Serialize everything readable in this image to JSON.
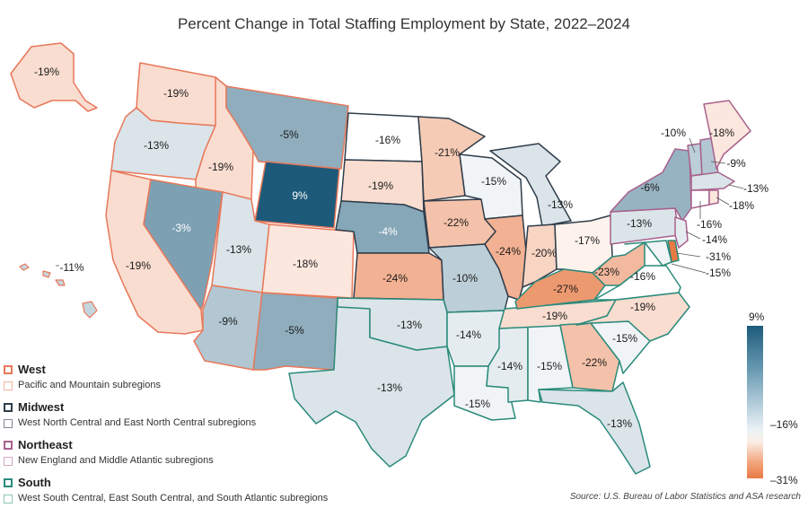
{
  "title": "Percent Change in Total Staffing Employment by State, 2022–2024",
  "colors": {
    "west": "#e8785a",
    "midwest": "#2f3d4a",
    "northeast": "#a8618c",
    "south": "#2a8a7a",
    "scale_high": "#1d5a7a",
    "scale_mid": "#ffffff",
    "scale_low": "#e87a45"
  },
  "states": {
    "AK": {
      "label": "-19%",
      "value": -19
    },
    "HI": {
      "label": "-11%",
      "value": -11
    },
    "WA": {
      "label": "-19%",
      "value": -19
    },
    "OR": {
      "label": "-13%",
      "value": -13
    },
    "CA": {
      "label": "-19%",
      "value": -19
    },
    "ID": {
      "label": "-19%",
      "value": -19
    },
    "NV": {
      "label": "-3%",
      "value": -3
    },
    "MT": {
      "label": "-5%",
      "value": -5
    },
    "WY": {
      "label": "9%",
      "value": 9
    },
    "UT": {
      "label": "-13%",
      "value": -13
    },
    "AZ": {
      "label": "-9%",
      "value": -9
    },
    "CO": {
      "label": "-18%",
      "value": -18
    },
    "NM": {
      "label": "-5%",
      "value": -5
    },
    "ND": {
      "label": "-16%",
      "value": -16
    },
    "SD": {
      "label": "-19%",
      "value": -19
    },
    "NE": {
      "label": "-4%",
      "value": -4
    },
    "KS": {
      "label": "-24%",
      "value": -24
    },
    "MN": {
      "label": "-21%",
      "value": -21
    },
    "IA": {
      "label": "-22%",
      "value": -22
    },
    "MO": {
      "label": "-10%",
      "value": -10
    },
    "WI": {
      "label": "-15%",
      "value": -15
    },
    "IL": {
      "label": "-24%",
      "value": -24
    },
    "MI": {
      "label": "-13%",
      "value": -13
    },
    "IN": {
      "label": "-20%",
      "value": -20
    },
    "OH": {
      "label": "-17%",
      "value": -17
    },
    "TX": {
      "label": "-13%",
      "value": -13
    },
    "OK": {
      "label": "-13%",
      "value": -13
    },
    "AR": {
      "label": "-14%",
      "value": -14
    },
    "LA": {
      "label": "-15%",
      "value": -15
    },
    "MS": {
      "label": "-14%",
      "value": -14
    },
    "AL": {
      "label": "-15%",
      "value": -15
    },
    "TN": {
      "label": "-19%",
      "value": -19
    },
    "KY": {
      "label": "-27%",
      "value": -27
    },
    "GA": {
      "label": "-22%",
      "value": -22
    },
    "FL": {
      "label": "-13%",
      "value": -13
    },
    "SC": {
      "label": "-15%",
      "value": -15
    },
    "NC": {
      "label": "-19%",
      "value": -19
    },
    "VA": {
      "label": "-16%",
      "value": -16
    },
    "WV": {
      "label": "-23%",
      "value": -23
    },
    "PA": {
      "label": "-13%",
      "value": -13
    },
    "NY": {
      "label": "-6%",
      "value": -6
    },
    "VT": {
      "label": "-10%",
      "value": -10
    },
    "ME": {
      "label": "-18%",
      "value": -18
    },
    "NH": {
      "label": "-9%",
      "value": -9
    },
    "MA": {
      "label": "-13%",
      "value": -13
    },
    "RI": {
      "label": "-18%",
      "value": -18
    },
    "CT": {
      "label": "-16%",
      "value": -16
    },
    "NJ": {
      "label": "-14%",
      "value": -14
    },
    "DE": {
      "label": "-31%",
      "value": -31
    },
    "MD": {
      "label": "-15%",
      "value": -15
    }
  },
  "legend": {
    "west": {
      "title": "West",
      "sub": "Pacific and Mountain subregions"
    },
    "midwest": {
      "title": "Midwest",
      "sub": "West North Central and East North Central subregions"
    },
    "northeast": {
      "title": "Northeast",
      "sub": "New England and Middle Atlantic subregions"
    },
    "south": {
      "title": "South",
      "sub": "West South Central, East South Central, and South Atlantic subregions"
    }
  },
  "scale": {
    "max_label": "9%",
    "mid_label": "–16%",
    "min_label": "–31%",
    "max": 9,
    "mid": -16,
    "min": -31
  },
  "source": "Source: U.S. Bureau of Labor Statistics and ASA research"
}
